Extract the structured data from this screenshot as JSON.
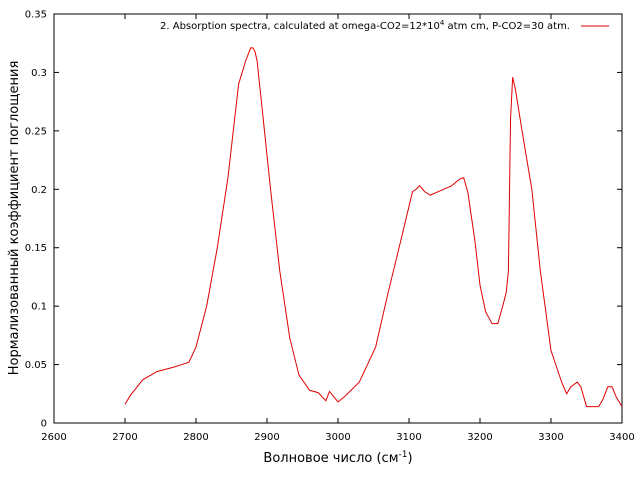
{
  "chart_data": {
    "type": "line",
    "xlabel": "Волновое число (см-1)",
    "xlabel_main": "Волновое число (см",
    "xlabel_sup": "-1",
    "xlabel_end": ")",
    "ylabel": "Нормализованный коэффициент поглощения",
    "xlim": [
      2600,
      3400
    ],
    "ylim": [
      0,
      0.35
    ],
    "xticks": [
      2600,
      2700,
      2800,
      2900,
      3000,
      3100,
      3200,
      3300,
      3400
    ],
    "yticks": [
      "0",
      "0.05",
      "0.1",
      "0.15",
      "0.2",
      "0.25",
      "0.3",
      "0.35"
    ],
    "grid": false,
    "legend_position": "top-right",
    "series": [
      {
        "name": "2. Absorption spectra, calculated at omega-CO2=12*10⁴ atm cm, P-CO2=30 atm.",
        "name_parts": {
          "a": "2. Absorption spectra, calculated at omega-CO2=12*10",
          "sup": "4",
          "b": " atm cm, P-CO2=30 atm."
        },
        "color": "#e00000",
        "x": [
          2700,
          2708,
          2725,
          2745,
          2770,
          2780,
          2790,
          2800,
          2815,
          2830,
          2845,
          2860,
          2870,
          2877,
          2880,
          2883,
          2886,
          2893,
          2905,
          2918,
          2932,
          2945,
          2960,
          2972,
          2983,
          2988,
          3000,
          3010,
          3030,
          3053,
          3070,
          3088,
          3105,
          3110,
          3115,
          3122,
          3130,
          3145,
          3160,
          3172,
          3177,
          3183,
          3193,
          3200,
          3208,
          3217,
          3225,
          3232,
          3237,
          3240,
          3243,
          3246,
          3250,
          3260,
          3273,
          3285,
          3300,
          3315,
          3322,
          3328,
          3337,
          3342,
          3350,
          3367,
          3373,
          3380,
          3386,
          3392,
          3400
        ],
        "y": [
          0.016,
          0.024,
          0.037,
          0.044,
          0.048,
          0.05,
          0.052,
          0.065,
          0.1,
          0.15,
          0.21,
          0.29,
          0.31,
          0.321,
          0.321,
          0.318,
          0.31,
          0.27,
          0.2,
          0.13,
          0.073,
          0.041,
          0.028,
          0.026,
          0.019,
          0.027,
          0.018,
          0.023,
          0.035,
          0.065,
          0.11,
          0.155,
          0.198,
          0.2,
          0.203,
          0.198,
          0.195,
          0.199,
          0.203,
          0.209,
          0.21,
          0.197,
          0.155,
          0.118,
          0.095,
          0.085,
          0.085,
          0.1,
          0.112,
          0.13,
          0.26,
          0.296,
          0.285,
          0.247,
          0.2,
          0.13,
          0.062,
          0.035,
          0.025,
          0.031,
          0.035,
          0.031,
          0.014,
          0.014,
          0.02,
          0.031,
          0.031,
          0.022,
          0.014
        ]
      }
    ]
  }
}
